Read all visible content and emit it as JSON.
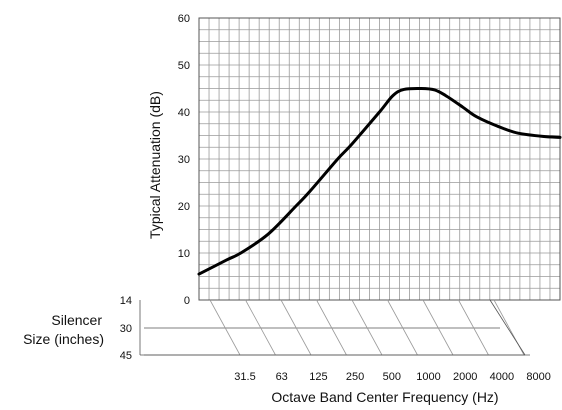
{
  "chart_data": {
    "type": "line",
    "title": "",
    "xlabel": "Octave Band Center Frequency (Hz)",
    "ylabel": "Typical Attenuation (dB)",
    "ylim": [
      0,
      60
    ],
    "yticks": [
      "0",
      "10",
      "20",
      "30",
      "40",
      "50",
      "60"
    ],
    "x_range_hz": [
      20,
      8000
    ],
    "x_scale": "log",
    "xtick_labels": [
      "31.5",
      "63",
      "125",
      "250",
      "500",
      "1000",
      "2000",
      "4000",
      "8000"
    ],
    "grid": true,
    "series": [
      {
        "x": [
          20,
          31.5,
          40,
          63,
          100,
          125,
          200,
          250,
          400,
          500,
          600,
          800,
          1000,
          1200,
          1600,
          2000,
          3000,
          4000,
          6000,
          8000
        ],
        "y": [
          5.5,
          8.5,
          10,
          14,
          20,
          23,
          30,
          33,
          40,
          43.5,
          44.8,
          45,
          44.7,
          43.5,
          41,
          39,
          36.7,
          35.5,
          34.8,
          34.6
        ]
      }
    ],
    "silencer": {
      "label_line1": "Silencer",
      "label_line2": "Size (inches)",
      "sizes": [
        "14",
        "30",
        "45"
      ]
    }
  },
  "colors": {
    "grid": "#9a9a9a",
    "curve": "#000000",
    "frame": "#555555"
  }
}
